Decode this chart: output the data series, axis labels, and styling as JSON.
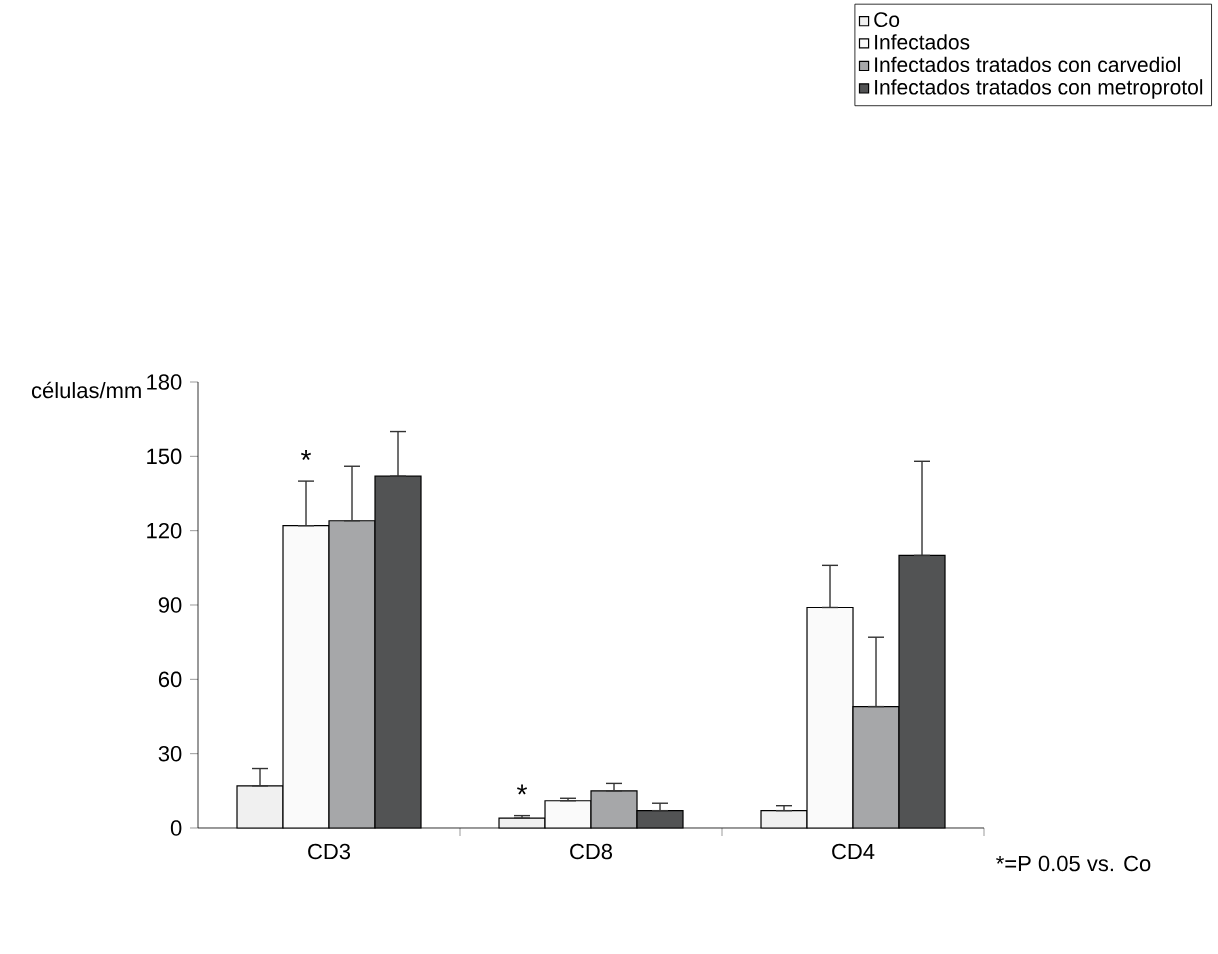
{
  "chart_data": {
    "type": "bar",
    "ylabel": "células/mm",
    "categories": [
      "CD3",
      "CD8",
      "CD4"
    ],
    "series": [
      {
        "name": "Co",
        "color": "#f0f0f0",
        "values": [
          17,
          4,
          7
        ],
        "errors": [
          [
            17,
            24
          ],
          [
            4,
            5
          ],
          [
            7,
            9
          ]
        ]
      },
      {
        "name": "Infectados",
        "color": "#fafafa",
        "values": [
          122,
          11,
          89
        ],
        "errors": [
          [
            122,
            140
          ],
          [
            11,
            12
          ],
          [
            89,
            106
          ]
        ]
      },
      {
        "name": "Infectados tratados con carvediol",
        "color": "#a6a7a9",
        "values": [
          124,
          15,
          49
        ],
        "errors": [
          [
            124,
            146
          ],
          [
            15,
            18
          ],
          [
            49,
            77
          ]
        ]
      },
      {
        "name": "Infectados tratados con metroprotol",
        "color": "#525354",
        "values": [
          142,
          7,
          110
        ],
        "errors": [
          [
            142,
            160
          ],
          [
            7,
            10
          ],
          [
            110,
            148
          ]
        ]
      }
    ],
    "ylim": [
      0,
      180
    ],
    "yticks": [
      0,
      30,
      60,
      90,
      120,
      150,
      180
    ],
    "grid": false,
    "legend": "top right",
    "annotations": [
      {
        "text": "*",
        "x": "CD3",
        "y": 122
      },
      {
        "text": "*",
        "x": "CD8",
        "y": 4
      },
      "*=P 0.05 vs. Co"
    ]
  }
}
